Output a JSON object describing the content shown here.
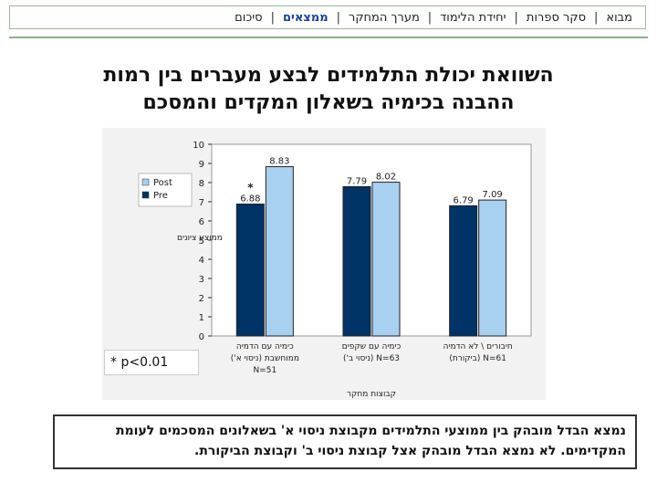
{
  "nav": {
    "items": [
      {
        "label": "מבוא",
        "active": false
      },
      {
        "label": "סקר ספרות",
        "active": false
      },
      {
        "label": "יחידת הלימוד",
        "active": false
      },
      {
        "label": "מערך המחקר",
        "active": false
      },
      {
        "label": "ממצאים",
        "active": true
      },
      {
        "label": "סיכום",
        "active": false
      }
    ],
    "separator": "|"
  },
  "title": {
    "line1": "השוואת יכולת התלמידים לבצע מעברים בין רמות",
    "line2": "ההבנה בכימיה בשאלון המקדים והמסכם"
  },
  "chart_data": {
    "type": "bar",
    "categories": [
      {
        "lines": [
          "כימיה עם הדמיה",
          "ממוחשבת (ניסוי א')",
          "N=51"
        ]
      },
      {
        "lines": [
          "כימיה עם שקפים",
          "N=63  (ניסוי ב')"
        ]
      },
      {
        "lines": [
          "חיבורים \\ לא הדמיה",
          "N=61  (ביקורת)"
        ]
      }
    ],
    "series": [
      {
        "name": "Pre",
        "color": "#003366",
        "values": [
          6.88,
          7.79,
          6.79
        ],
        "labels": [
          "6.88",
          "7.79",
          "6.79"
        ]
      },
      {
        "name": "Post",
        "color": "#a8d0f0",
        "values": [
          8.83,
          8.02,
          7.09
        ],
        "labels": [
          "8.83",
          "8.02",
          "7.09"
        ]
      }
    ],
    "legend": [
      {
        "name": "Post",
        "color": "#a8d0f0"
      },
      {
        "name": "Pre",
        "color": "#003366"
      }
    ],
    "significance_marker": "*",
    "ylabel": "ממוצע ציונים",
    "xlabel": "קבוצות מחקר",
    "ylim": [
      0,
      10
    ],
    "yticks": [
      0,
      1,
      2,
      3,
      4,
      5,
      6,
      7,
      8,
      9,
      10
    ],
    "grid": false,
    "legend_position": "left"
  },
  "note": "* p<0.01",
  "summary": "נמצא הבדל מובהק בין ממוצעי התלמידים מקבוצת ניסוי א' בשאלונים המסכמים לעומת המקדימים. לא נמצא הבדל מובהק אצל קבוצת ניסוי ב' וקבוצת הביקורת."
}
